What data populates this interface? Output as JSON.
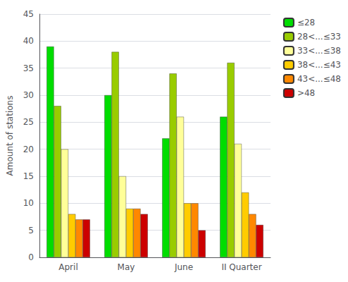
{
  "chart_data": {
    "type": "bar",
    "ylabel": "Amount of stations",
    "categories": [
      "April",
      "May",
      "June",
      "II Quarter"
    ],
    "series": [
      {
        "name": "≤28",
        "color": "#00dd00",
        "values": [
          39,
          30,
          22,
          26
        ]
      },
      {
        "name": "28<...≤33",
        "color": "#99cc00",
        "values": [
          28,
          38,
          34,
          36
        ]
      },
      {
        "name": "33<...≤38",
        "color": "#ffff99",
        "values": [
          20,
          15,
          26,
          21
        ]
      },
      {
        "name": "38<...≤43",
        "color": "#ffcc00",
        "values": [
          8,
          9,
          10,
          12
        ]
      },
      {
        "name": "43<...≤48",
        "color": "#ff8800",
        "values": [
          7,
          9,
          10,
          8
        ]
      },
      {
        "name": ">48",
        "color": "#cc0000",
        "values": [
          7,
          8,
          5,
          6
        ]
      }
    ],
    "ylim": [
      0,
      45
    ],
    "yticks": [
      0,
      5,
      10,
      15,
      20,
      25,
      30,
      35,
      40,
      45
    ],
    "grid": true,
    "legend": "upper right"
  }
}
